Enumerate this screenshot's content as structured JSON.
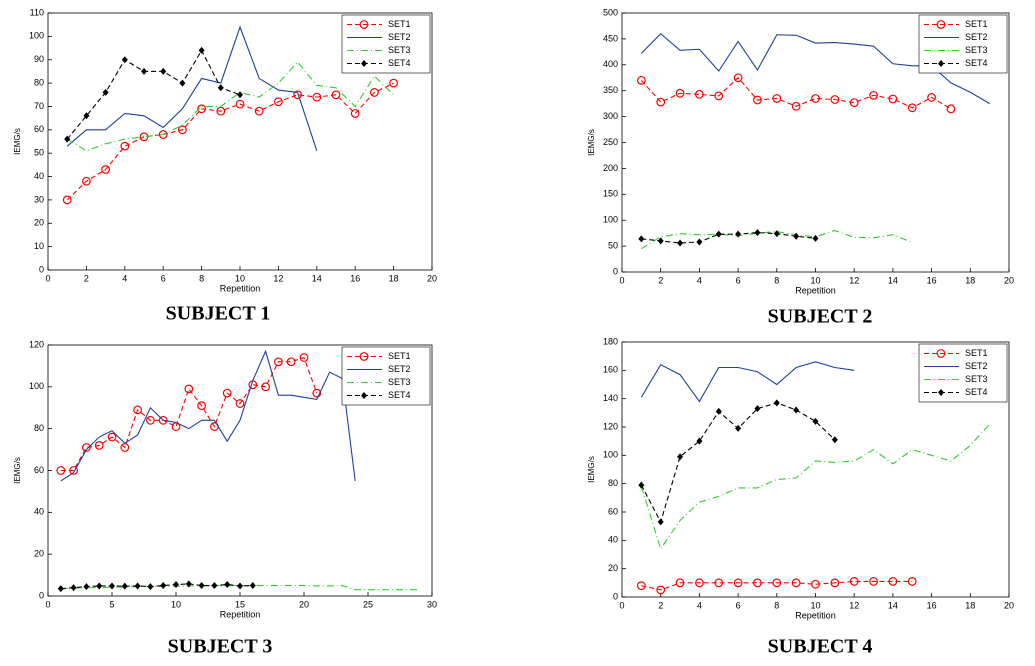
{
  "chart_data": [
    {
      "type": "line",
      "caption": "SUBJECT 1",
      "x_label": "Repetition",
      "y_label": "IEMG/s",
      "xlim": [
        0,
        20
      ],
      "xticks": [
        0,
        2,
        4,
        6,
        8,
        10,
        12,
        14,
        16,
        18,
        20
      ],
      "ylim": [
        0,
        110
      ],
      "yticks": [
        0,
        10,
        20,
        30,
        40,
        50,
        60,
        70,
        80,
        90,
        100,
        110
      ],
      "legend": "upper right",
      "series": [
        {
          "name": "SET1",
          "color": "#ff0000",
          "linestyle": "--",
          "marker": "o",
          "x": [
            1,
            2,
            3,
            4,
            5,
            6,
            7,
            8,
            9,
            10,
            11,
            12,
            13,
            14,
            15,
            16,
            17,
            18
          ],
          "values": [
            30,
            38,
            43,
            53,
            57,
            58,
            60,
            69,
            68,
            71,
            68,
            72,
            75,
            74,
            75,
            67,
            76,
            80
          ]
        },
        {
          "name": "SET2",
          "color": "#1f3f9f",
          "linestyle": "-",
          "marker": "none",
          "x": [
            1,
            2,
            3,
            4,
            5,
            6,
            7,
            8,
            9,
            10,
            11,
            12,
            13,
            14
          ],
          "values": [
            53,
            60,
            60,
            67,
            66,
            61,
            69,
            82,
            80,
            104,
            82,
            77,
            76,
            51
          ]
        },
        {
          "name": "SET3",
          "color": "#33cc33",
          "linestyle": "-.",
          "marker": "none",
          "x": [
            1,
            2,
            3,
            4,
            5,
            6,
            7,
            8,
            9,
            10,
            11,
            12,
            13,
            14,
            15,
            16,
            17,
            18
          ],
          "values": [
            56,
            51,
            54,
            56,
            57,
            58,
            62,
            70,
            70,
            76,
            74,
            80,
            89,
            79,
            78,
            70,
            83,
            75
          ]
        },
        {
          "name": "SET4",
          "color": "#000000",
          "linestyle": "--",
          "marker": "d",
          "x": [
            1,
            2,
            3,
            4,
            5,
            6,
            7,
            8,
            9,
            10
          ],
          "values": [
            56,
            66,
            76,
            90,
            85,
            85,
            80,
            94,
            78,
            75
          ]
        }
      ]
    },
    {
      "type": "line",
      "caption": "SUBJECT 2",
      "x_label": "Repetition",
      "y_label": "IEMG/s",
      "xlim": [
        0,
        20
      ],
      "xticks": [
        0,
        2,
        4,
        6,
        8,
        10,
        12,
        14,
        16,
        18,
        20
      ],
      "ylim": [
        0,
        500
      ],
      "yticks": [
        0,
        50,
        100,
        150,
        200,
        250,
        300,
        350,
        400,
        450,
        500
      ],
      "legend": "upper right",
      "series": [
        {
          "name": "SET1",
          "color": "#ff0000",
          "linestyle": "--",
          "marker": "o",
          "x": [
            1,
            2,
            3,
            4,
            5,
            6,
            7,
            8,
            9,
            10,
            11,
            12,
            13,
            14,
            15,
            16,
            17
          ],
          "values": [
            370,
            328,
            345,
            343,
            340,
            375,
            332,
            335,
            320,
            335,
            333,
            327,
            341,
            334,
            317,
            337,
            315
          ]
        },
        {
          "name": "SET2",
          "color": "#1f3f9f",
          "linestyle": "-",
          "marker": "none",
          "x": [
            1,
            2,
            3,
            4,
            5,
            6,
            7,
            8,
            9,
            10,
            11,
            12,
            13,
            14,
            15,
            16,
            17,
            18,
            19
          ],
          "values": [
            422,
            460,
            428,
            430,
            388,
            445,
            390,
            458,
            457,
            442,
            443,
            440,
            436,
            402,
            398,
            398,
            365,
            347,
            325
          ]
        },
        {
          "name": "SET3",
          "color": "#33cc33",
          "linestyle": "-.",
          "marker": "none",
          "x": [
            1,
            2,
            3,
            4,
            5,
            6,
            7,
            8,
            9,
            10,
            11,
            12,
            13,
            14,
            15
          ],
          "values": [
            45,
            68,
            74,
            72,
            73,
            70,
            75,
            78,
            72,
            68,
            80,
            67,
            66,
            72,
            57
          ]
        },
        {
          "name": "SET4",
          "color": "#000000",
          "linestyle": "--",
          "marker": "d",
          "x": [
            1,
            2,
            3,
            4,
            5,
            6,
            7,
            8,
            9,
            10
          ],
          "values": [
            64,
            60,
            56,
            58,
            73,
            73,
            76,
            74,
            69,
            65
          ]
        }
      ]
    },
    {
      "type": "line",
      "caption": "SUBJECT 3",
      "x_label": "Repetition",
      "y_label": "IEMG/s",
      "xlim": [
        0,
        30
      ],
      "xticks": [
        0,
        5,
        10,
        15,
        20,
        25,
        30
      ],
      "ylim": [
        0,
        120
      ],
      "yticks": [
        0,
        20,
        40,
        60,
        80,
        100,
        120
      ],
      "legend": "upper right",
      "series": [
        {
          "name": "SET1",
          "color": "#ff0000",
          "linestyle": "--",
          "marker": "o",
          "x": [
            1,
            2,
            3,
            4,
            5,
            6,
            7,
            8,
            9,
            10,
            11,
            12,
            13,
            14,
            15,
            16,
            17,
            18,
            19,
            20,
            21
          ],
          "values": [
            60,
            60,
            71,
            72,
            76,
            71,
            89,
            84,
            84,
            81,
            99,
            91,
            81,
            97,
            92,
            101,
            100,
            112,
            112,
            114,
            97
          ]
        },
        {
          "name": "SET2",
          "color": "#1f3f9f",
          "linestyle": "-",
          "marker": "none",
          "x": [
            1,
            2,
            3,
            4,
            5,
            6,
            7,
            8,
            9,
            10,
            11,
            12,
            13,
            14,
            15,
            16,
            17,
            18,
            19,
            20,
            21,
            22,
            23,
            24
          ],
          "values": [
            55,
            59,
            70,
            76,
            79,
            73,
            77,
            90,
            84,
            83,
            80,
            84,
            84,
            74,
            84,
            103,
            117,
            96,
            96,
            95,
            94,
            107,
            104,
            55
          ]
        },
        {
          "name": "SET3",
          "color": "#33cc33",
          "linestyle": "-.",
          "marker": "none",
          "x": [
            1,
            2,
            3,
            4,
            5,
            6,
            7,
            8,
            9,
            10,
            11,
            12,
            13,
            14,
            15,
            16,
            17,
            18,
            19,
            20,
            21,
            22,
            23,
            24,
            25,
            26,
            27,
            28,
            29
          ],
          "values": [
            3.5,
            3.8,
            4,
            4,
            4.2,
            4.3,
            4.5,
            4.5,
            4.6,
            4.7,
            4.8,
            4.8,
            4.9,
            5,
            5,
            5,
            5,
            5,
            5,
            5,
            4.8,
            4.8,
            5,
            3,
            3,
            3,
            3,
            3,
            3
          ]
        },
        {
          "name": "SET4",
          "color": "#000000",
          "linestyle": "--",
          "marker": "d",
          "x": [
            1,
            2,
            3,
            4,
            5,
            6,
            7,
            8,
            9,
            10,
            11,
            12,
            13,
            14,
            15,
            16
          ],
          "values": [
            3.5,
            4,
            4.5,
            4.8,
            4.8,
            4.7,
            4.8,
            4.5,
            5,
            5.5,
            5.8,
            5,
            5,
            5.5,
            4.8,
            5
          ]
        }
      ]
    },
    {
      "type": "line",
      "caption": "SUBJECT 4",
      "x_label": "Repetition",
      "y_label": "IEMG/s",
      "xlim": [
        0,
        20
      ],
      "xticks": [
        0,
        2,
        4,
        6,
        8,
        10,
        12,
        14,
        16,
        18,
        20
      ],
      "ylim": [
        0,
        180
      ],
      "yticks": [
        0,
        20,
        40,
        60,
        80,
        100,
        120,
        140,
        160,
        180
      ],
      "legend": "upper right",
      "series": [
        {
          "name": "SET1",
          "color": "#ff0000",
          "linestyle": "--",
          "marker": "o",
          "x": [
            1,
            2,
            3,
            4,
            5,
            6,
            7,
            8,
            9,
            10,
            11,
            12,
            13,
            14,
            15
          ],
          "values": [
            8,
            5,
            10,
            10,
            10,
            10,
            10,
            10,
            10,
            9,
            10,
            11,
            11,
            11,
            11
          ]
        },
        {
          "name": "SET2",
          "color": "#1f3f9f",
          "linestyle": "-",
          "marker": "none",
          "x": [
            1,
            2,
            3,
            4,
            5,
            6,
            7,
            8,
            9,
            10,
            11,
            12
          ],
          "values": [
            141,
            164,
            157,
            138,
            162,
            162,
            159,
            150,
            162,
            166,
            162,
            160
          ]
        },
        {
          "name": "SET3",
          "color": "#33cc33",
          "linestyle": "-.",
          "marker": "none",
          "x": [
            1,
            2,
            3,
            4,
            5,
            6,
            7,
            8,
            9,
            10,
            11,
            12,
            13,
            14,
            15,
            16,
            17,
            18,
            19
          ],
          "values": [
            78,
            34,
            54,
            67,
            71,
            77,
            77,
            83,
            84,
            96,
            95,
            96,
            104,
            94,
            104,
            100,
            96,
            107,
            122
          ]
        },
        {
          "name": "SET4",
          "color": "#000000",
          "linestyle": "--",
          "marker": "d",
          "x": [
            1,
            2,
            3,
            4,
            5,
            6,
            7,
            8,
            9,
            10,
            11
          ],
          "values": [
            79,
            53,
            99,
            110,
            131,
            119,
            133,
            137,
            132,
            124,
            111
          ]
        }
      ]
    }
  ]
}
